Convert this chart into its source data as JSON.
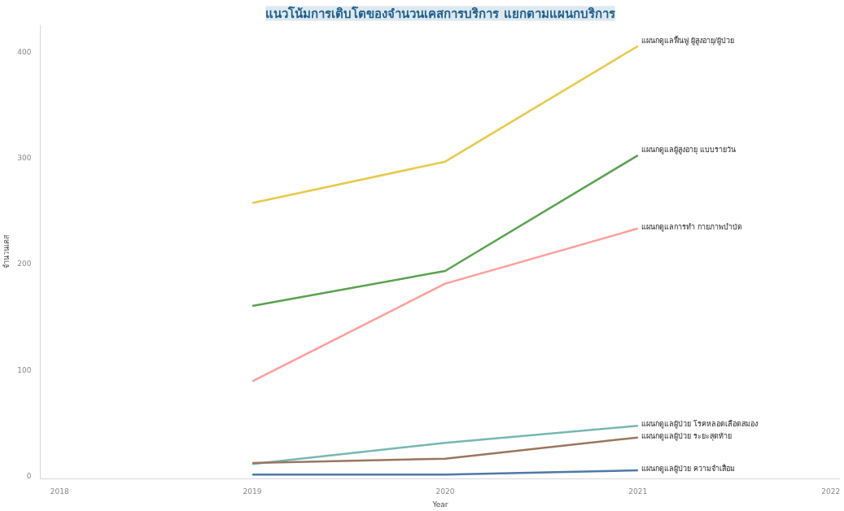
{
  "chart_data": {
    "type": "line",
    "title": "แนวโน้มการเติบโตของจำนวนเคสการบริการ แยกตามแผนกบริการ",
    "xlabel": "Year",
    "ylabel": "จำนวนเคส",
    "x": [
      2019,
      2020,
      2021
    ],
    "series": [
      {
        "name": "แผนกดูแลฟื้นฟู ผู้สูงอายุ/ผู้ป่วย",
        "color": "#e9c94b",
        "values": [
          257,
          296,
          405
        ]
      },
      {
        "name": "แผนกดูแลผู้สูงอายุ แบบรายวัน",
        "color": "#59a14f",
        "values": [
          160,
          193,
          302
        ]
      },
      {
        "name": "แผนกดูแลการทำ กายภาพบำบัด",
        "color": "#ff9d9a",
        "values": [
          89,
          181,
          233
        ]
      },
      {
        "name": "แผนกดูแลผู้ป่วย โรคหลอดเลือดสมอง",
        "color": "#76b7b2",
        "values": [
          11,
          31,
          47
        ]
      },
      {
        "name": "แผนกดูแลผู้ป่วย ระยะสุดท้าย",
        "color": "#9c755f",
        "values": [
          12,
          16,
          36
        ]
      },
      {
        "name": "แผนกดูแลผู้ป่วย ความจำเสื่อม",
        "color": "#4e79a7",
        "values": [
          1,
          1,
          5
        ]
      }
    ],
    "xlim": [
      2017.9,
      2022.05
    ],
    "xticks": [
      2018,
      2019,
      2020,
      2021,
      2022
    ],
    "ylim": [
      -3,
      425
    ],
    "yticks": [
      0,
      100,
      200,
      300,
      400
    ],
    "grid": false,
    "marker": "none",
    "line_style": "solid"
  }
}
